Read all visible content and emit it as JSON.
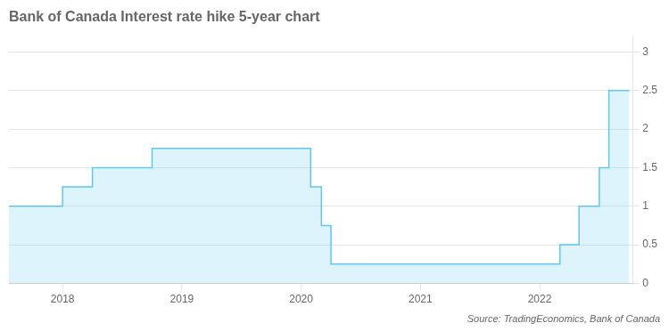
{
  "chart_data": {
    "type": "area",
    "title": "Bank of Canada Interest rate hike 5-year chart",
    "annotation": "Source: TradingEconomics, Bank of Canada",
    "x": [
      2017.55,
      2018.0,
      2018.0,
      2018.25,
      2018.25,
      2018.75,
      2018.75,
      2019.83,
      2019.83,
      2020.08,
      2020.08,
      2020.17,
      2020.17,
      2020.25,
      2020.25,
      2020.33,
      2020.33,
      2022.17,
      2022.17,
      2022.33,
      2022.33,
      2022.5,
      2022.5,
      2022.58,
      2022.58,
      2022.75
    ],
    "values": [
      1.0,
      1.0,
      1.25,
      1.25,
      1.5,
      1.5,
      1.75,
      1.75,
      1.75,
      1.75,
      1.25,
      1.25,
      0.75,
      0.75,
      0.25,
      0.25,
      0.25,
      0.25,
      0.5,
      0.5,
      1.0,
      1.0,
      1.5,
      1.5,
      2.5,
      2.5
    ],
    "color": "#5bc8f5",
    "xlim": [
      2017.55,
      2022.78
    ],
    "xticks": [
      2018,
      2019,
      2020,
      2021,
      2022
    ],
    "ylim": [
      0,
      3.2
    ],
    "yticks": [
      0,
      0.5,
      1,
      1.5,
      2,
      2.5,
      3
    ],
    "grid": true
  }
}
